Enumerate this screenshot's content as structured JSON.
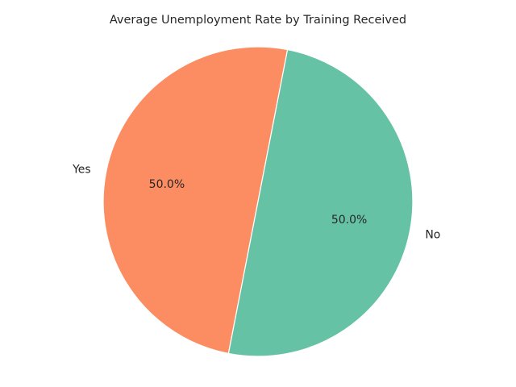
{
  "chart_data": {
    "type": "pie",
    "title": "Average Unemployment Rate by Training Received",
    "labels": [
      "Yes",
      "No"
    ],
    "values": [
      50.0,
      50.0
    ],
    "percent_labels": [
      "50.0%",
      "50.0%"
    ],
    "colors": [
      "#fc8d62",
      "#66c2a5"
    ],
    "edge_color": "#ffffff",
    "start_angle_deg": 79
  }
}
